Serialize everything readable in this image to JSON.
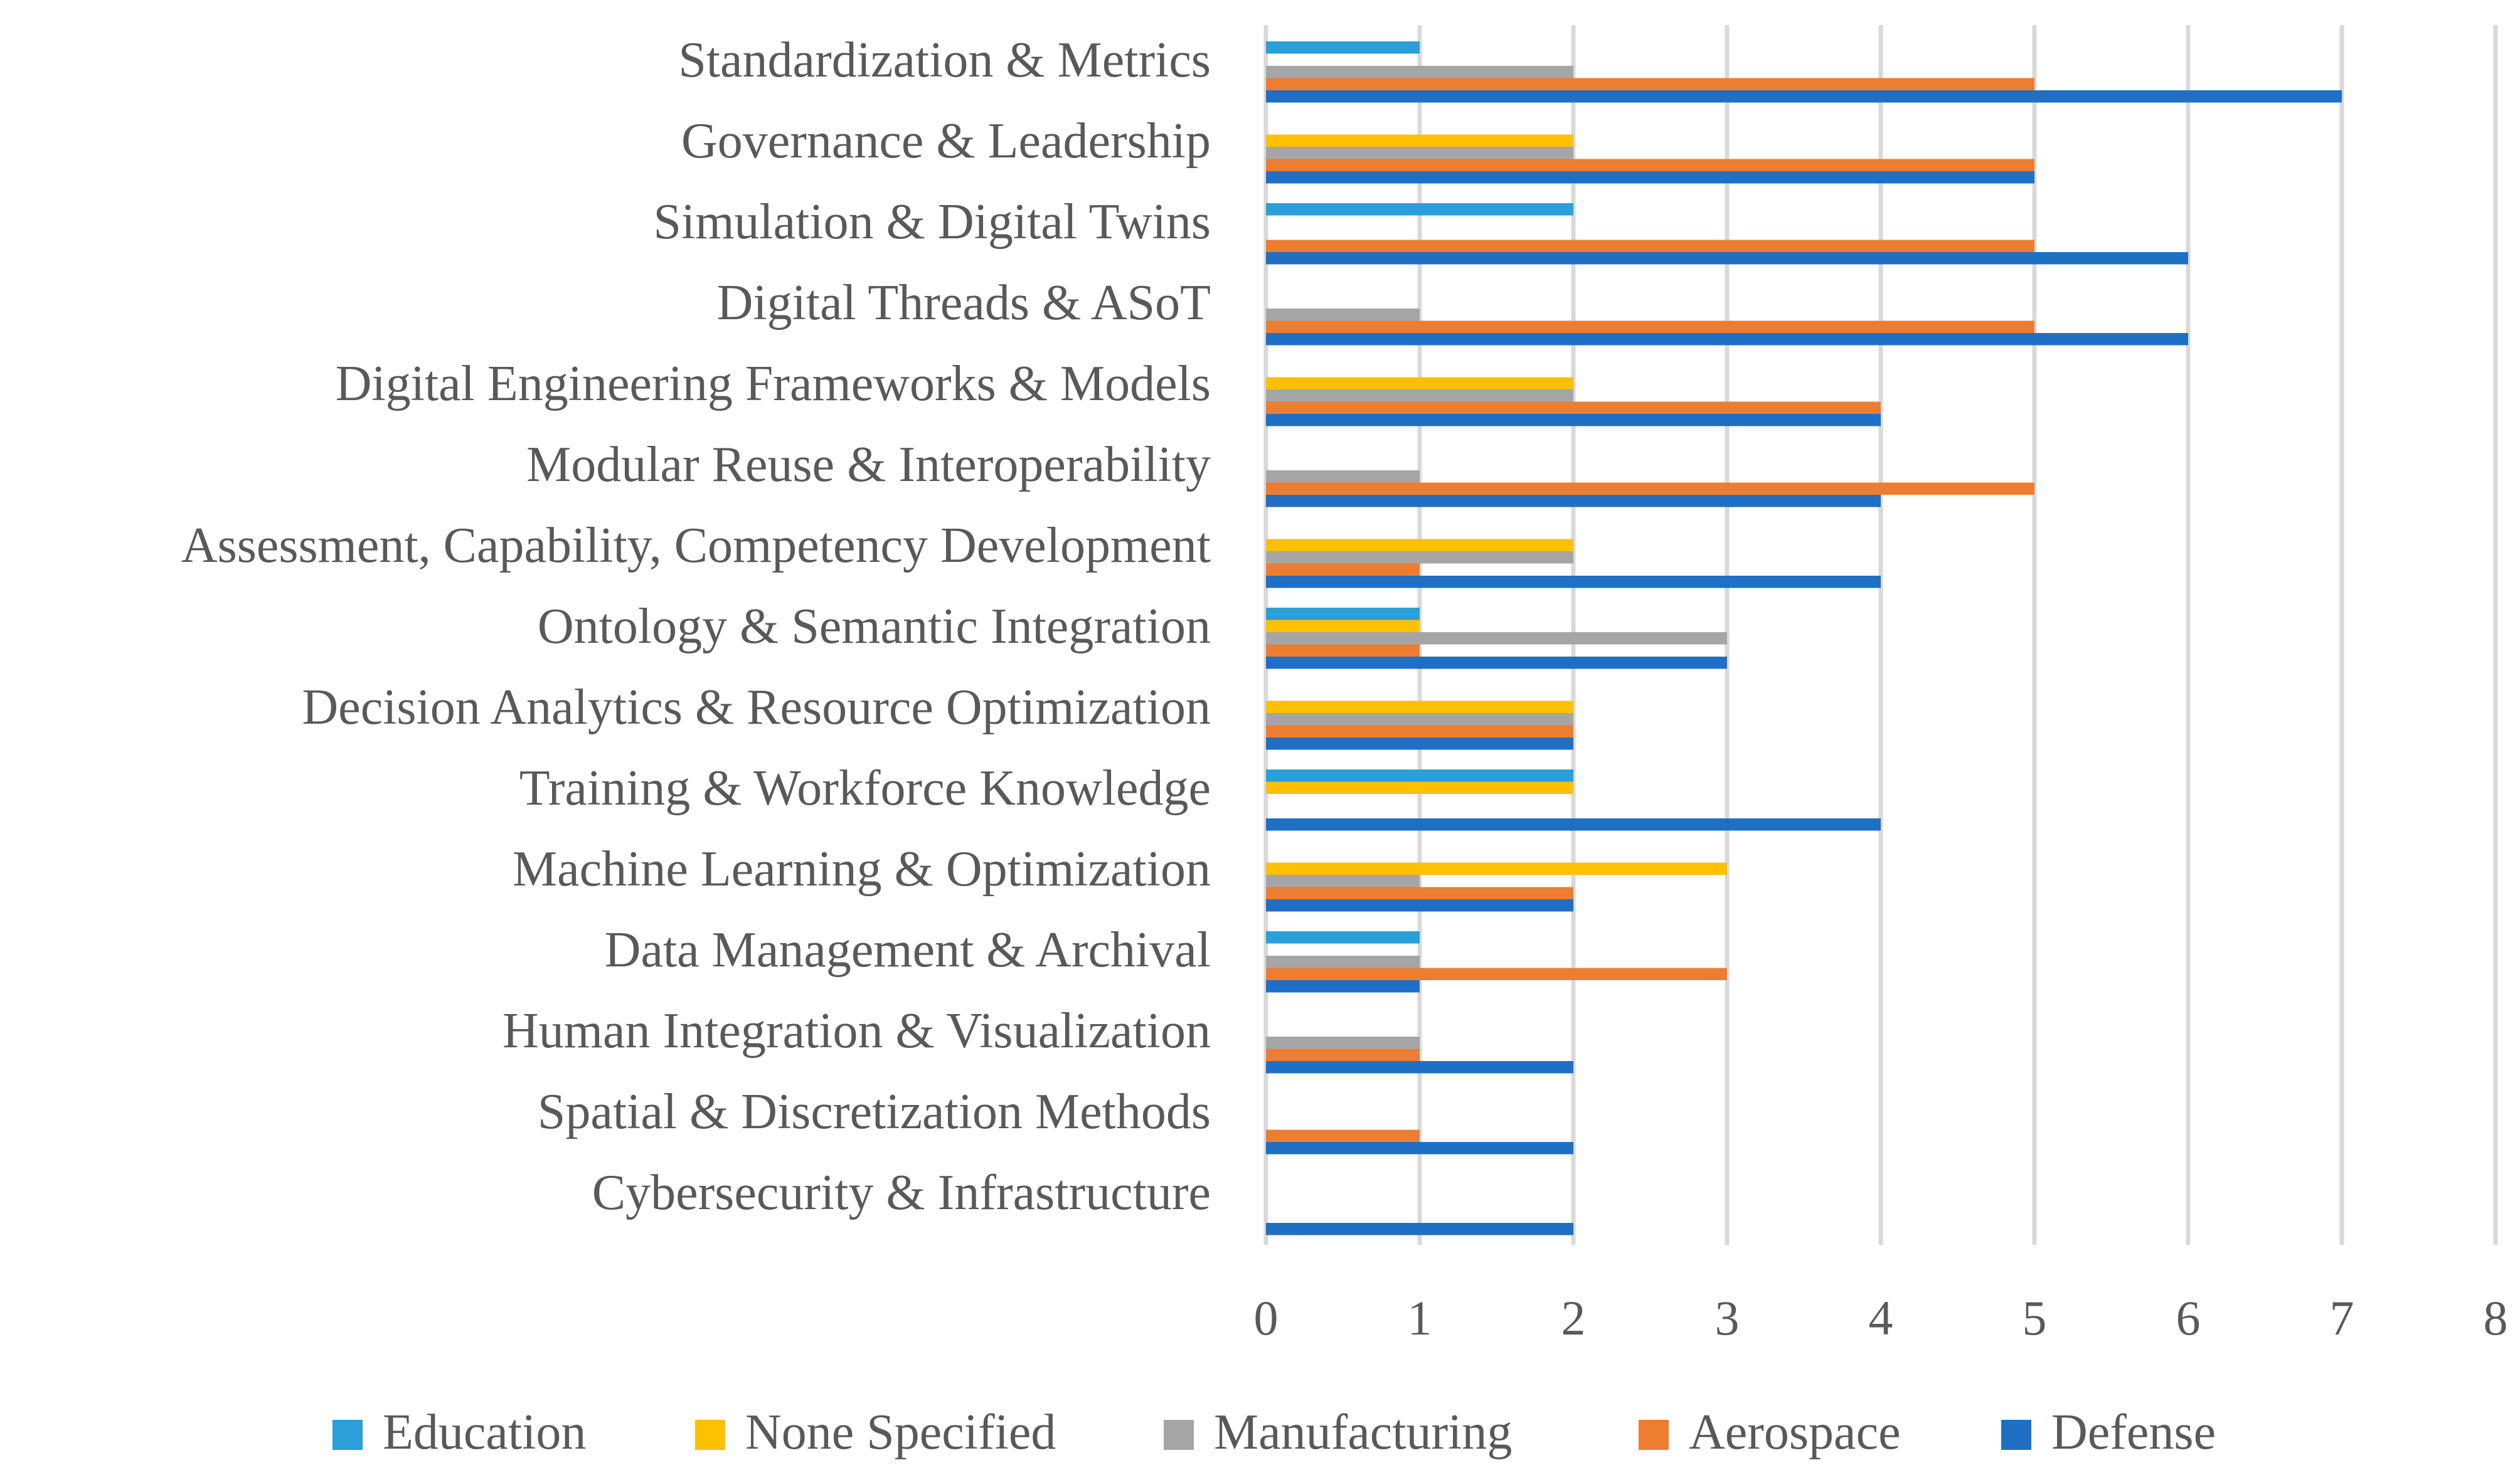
{
  "chart_data": {
    "type": "bar",
    "orientation": "horizontal",
    "title": "",
    "xlabel": "",
    "ylabel": "",
    "xlim": [
      0,
      8
    ],
    "ticks": [
      "0",
      "1",
      "2",
      "3",
      "4",
      "5",
      "6",
      "7",
      "8"
    ],
    "grid": true,
    "legend_position": "bottom",
    "categories": [
      "Standardization & Metrics",
      "Governance & Leadership",
      "Simulation & Digital Twins",
      "Digital Threads & ASoT",
      "Digital Engineering Frameworks & Models",
      "Modular Reuse & Interoperability",
      "Assessment, Capability, Competency Development",
      "Ontology & Semantic Integration",
      "Decision Analytics & Resource Optimization",
      "Training & Workforce Knowledge",
      "Machine Learning & Optimization",
      "Data Management & Archival",
      "Human Integration & Visualization",
      "Spatial & Discretization Methods",
      "Cybersecurity & Infrastructure"
    ],
    "series": [
      {
        "name": "Education",
        "color": "#2a9fd8",
        "values": [
          1,
          0,
          2,
          0,
          0,
          0,
          0,
          1,
          0,
          2,
          0,
          1,
          0,
          0,
          0
        ]
      },
      {
        "name": "None Specified",
        "color": "#ffc000",
        "values": [
          0,
          2,
          0,
          0,
          2,
          0,
          2,
          1,
          2,
          2,
          3,
          0,
          0,
          0,
          0
        ]
      },
      {
        "name": "Manufacturing",
        "color": "#a5a5a5",
        "values": [
          2,
          2,
          0,
          1,
          2,
          1,
          2,
          3,
          2,
          0,
          1,
          1,
          1,
          0,
          0
        ]
      },
      {
        "name": "Aerospace",
        "color": "#ed7d31",
        "values": [
          5,
          5,
          5,
          5,
          4,
          5,
          1,
          1,
          2,
          0,
          2,
          3,
          1,
          1,
          0
        ]
      },
      {
        "name": "Defense",
        "color": "#1f6fc5",
        "values": [
          7,
          5,
          6,
          6,
          4,
          4,
          4,
          3,
          2,
          4,
          2,
          1,
          2,
          2,
          2
        ]
      }
    ]
  }
}
